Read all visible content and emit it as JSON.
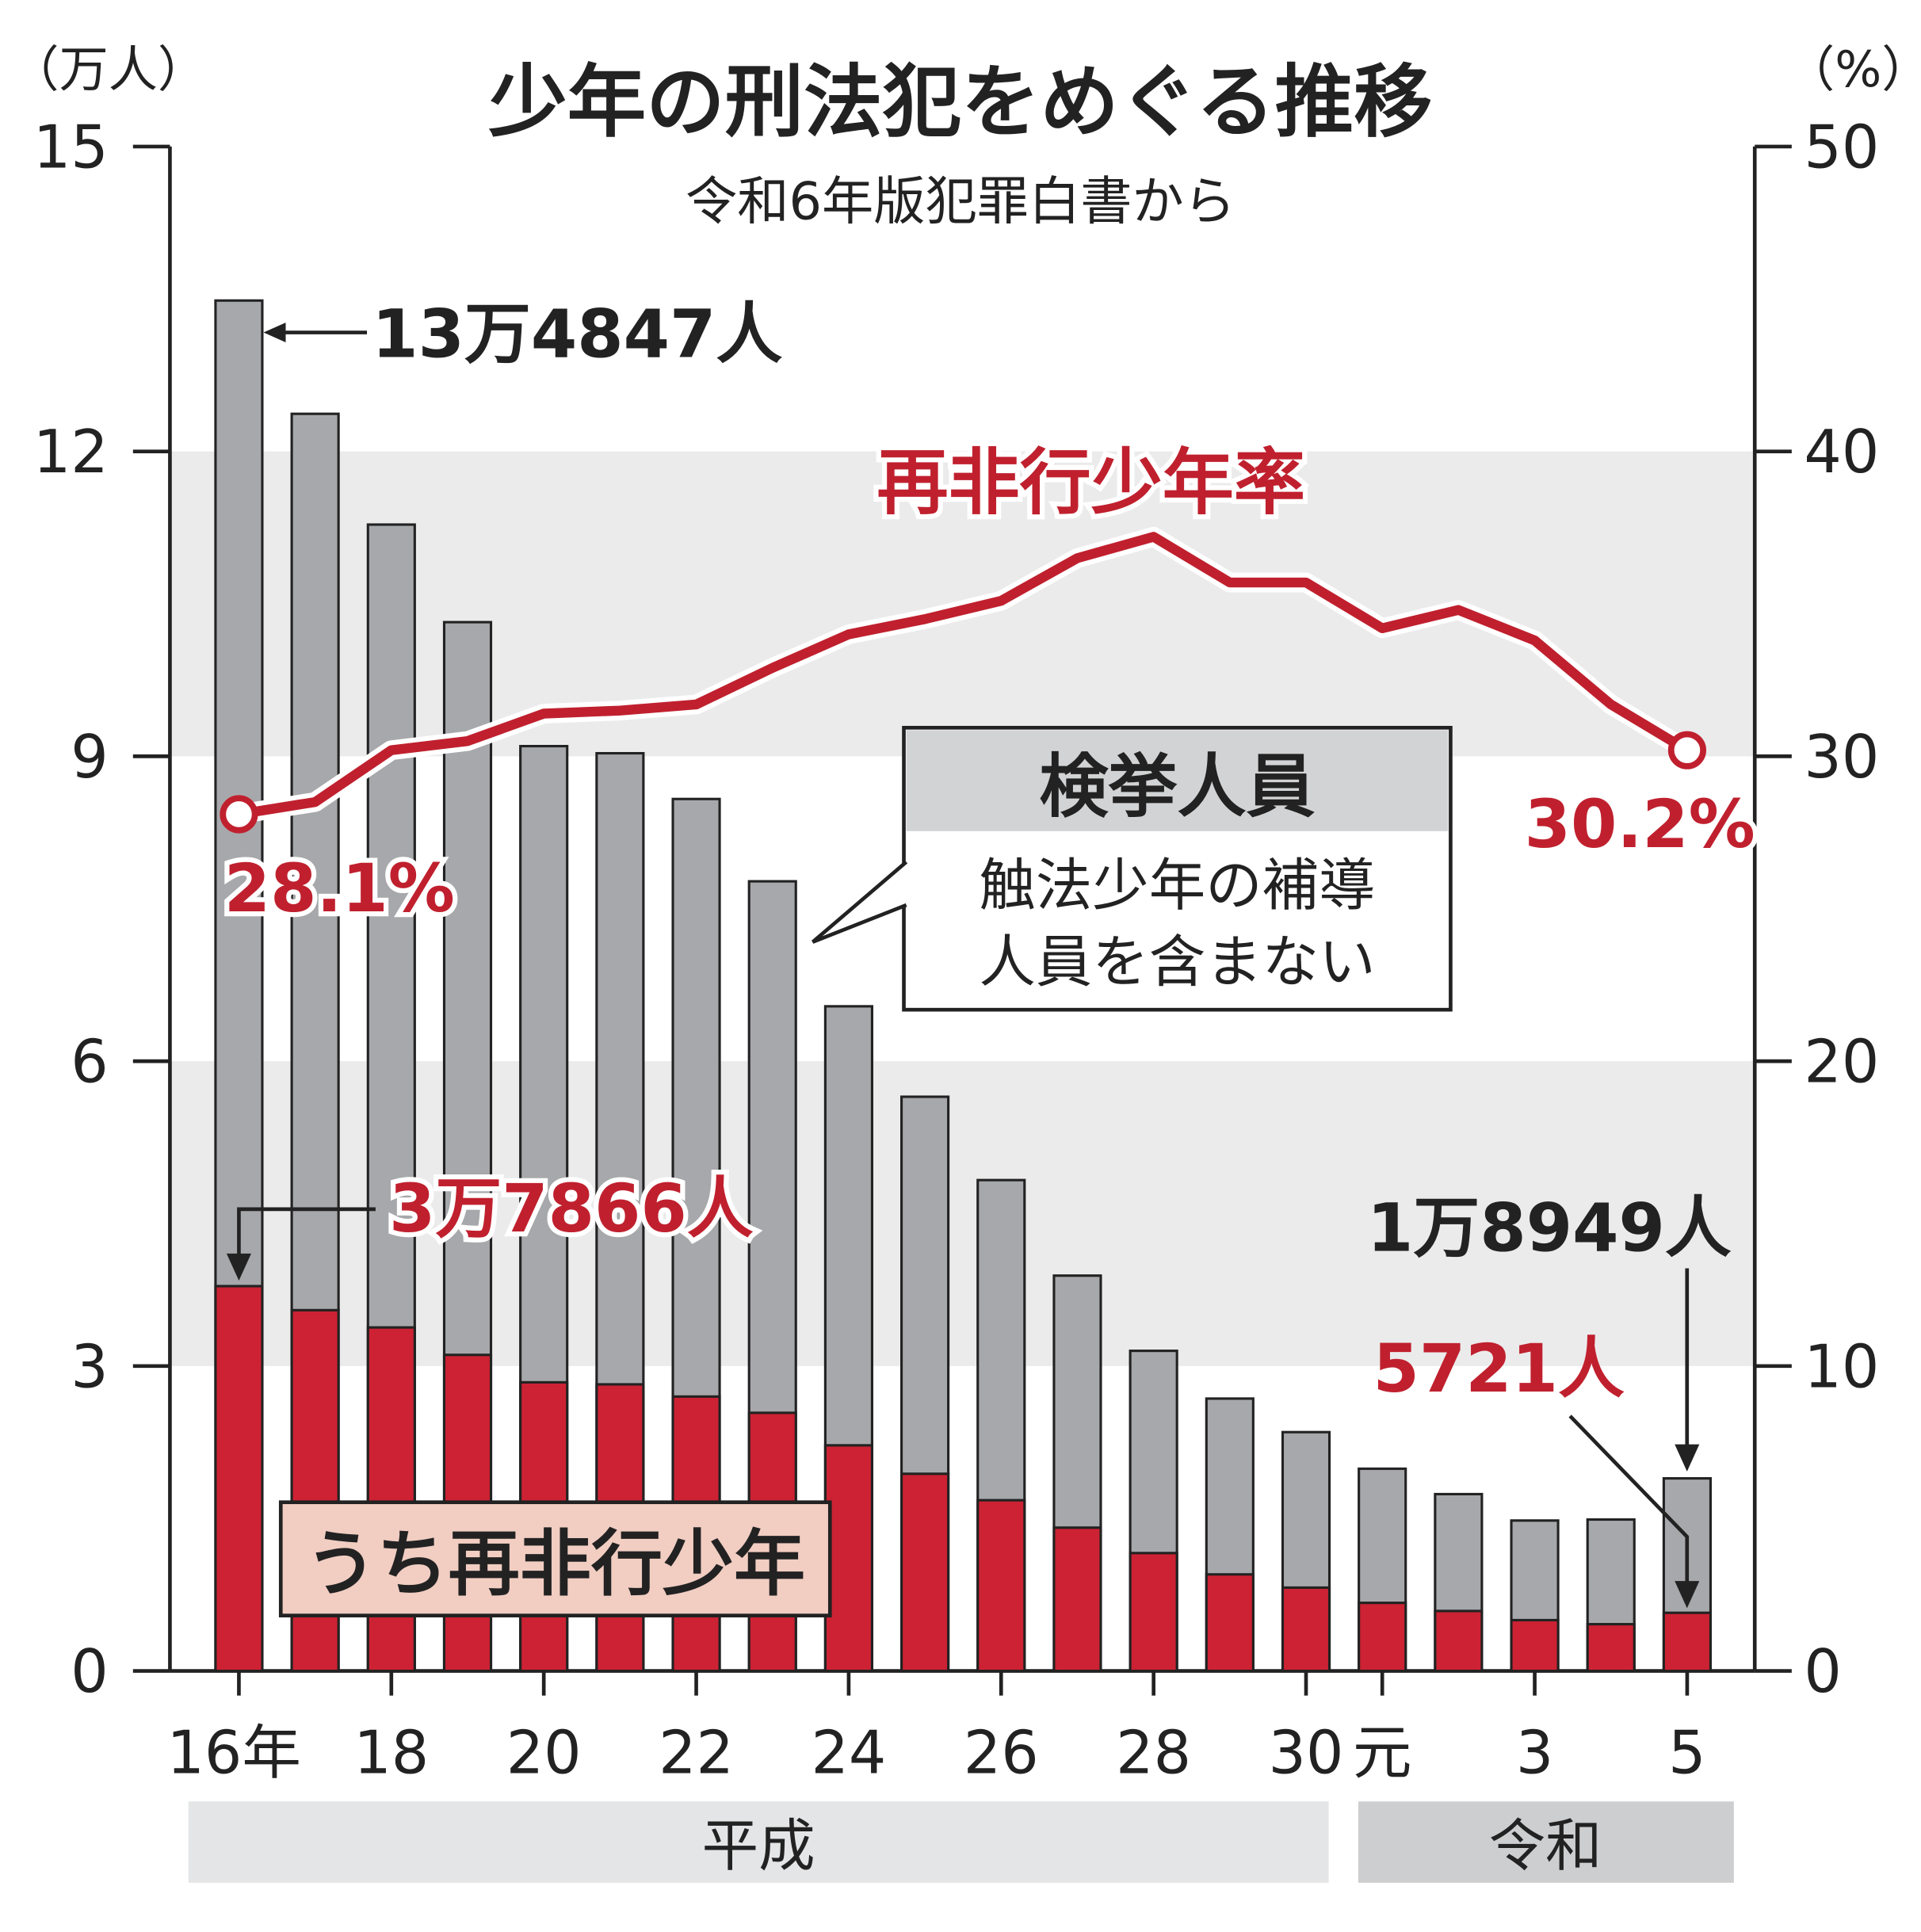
{
  "chart_data": {
    "type": "bar",
    "title": "少年の刑法犯をめぐる推移",
    "subtitle": "令和6年版犯罪白書から",
    "y_left_label": "（万人）",
    "y_right_label": "（%）",
    "y_left_ticks": [
      "0",
      "3",
      "6",
      "9",
      "12",
      "15"
    ],
    "y_right_ticks": [
      "0",
      "10",
      "20",
      "30",
      "40",
      "50"
    ],
    "ylim_left": [
      0,
      15
    ],
    "ylim_right": [
      0,
      50
    ],
    "x_tick_labels": [
      "16年",
      "18",
      "20",
      "22",
      "24",
      "26",
      "28",
      "30",
      "元",
      "3",
      "5"
    ],
    "eras": [
      {
        "name": "平成"
      },
      {
        "name": "令和"
      }
    ],
    "categories": [
      "H16",
      "H17",
      "H18",
      "H19",
      "H20",
      "H21",
      "H22",
      "H23",
      "H24",
      "H25",
      "H26",
      "H27",
      "H28",
      "H29",
      "H30",
      "R1",
      "R2",
      "R3",
      "R4",
      "R5"
    ],
    "series": [
      {
        "name": "検挙人員",
        "note": "触法少年の補導人員を含まない",
        "color": "#a7a8ab",
        "values": [
          13.4847,
          12.37,
          11.28,
          10.32,
          9.1,
          9.03,
          8.58,
          7.77,
          6.54,
          5.65,
          4.83,
          3.89,
          3.15,
          2.68,
          2.35,
          1.99,
          1.74,
          1.48,
          1.49,
          1.8949
        ]
      },
      {
        "name": "うち再非行少年",
        "color": "#cc2233",
        "values": [
          3.7866,
          3.55,
          3.38,
          3.11,
          2.84,
          2.82,
          2.7,
          2.54,
          2.22,
          1.94,
          1.68,
          1.41,
          1.16,
          0.95,
          0.82,
          0.67,
          0.59,
          0.5,
          0.46,
          0.5721
        ]
      },
      {
        "name": "再非行少年率",
        "type": "line",
        "axis": "right",
        "color": "#c0202e",
        "values": [
          28.1,
          28.5,
          30.2,
          30.5,
          31.4,
          31.5,
          31.7,
          32.9,
          34.0,
          34.5,
          35.1,
          36.5,
          37.2,
          35.7,
          35.7,
          34.2,
          34.8,
          33.8,
          31.7,
          30.2
        ]
      }
    ],
    "annotations": {
      "total_first": "13万4847人",
      "total_last": "1万8949人",
      "repeat_first": "3万7866人",
      "repeat_last": "5721人",
      "rate_first": "28.1%",
      "rate_last": "30.2%"
    },
    "grid": "bands"
  }
}
